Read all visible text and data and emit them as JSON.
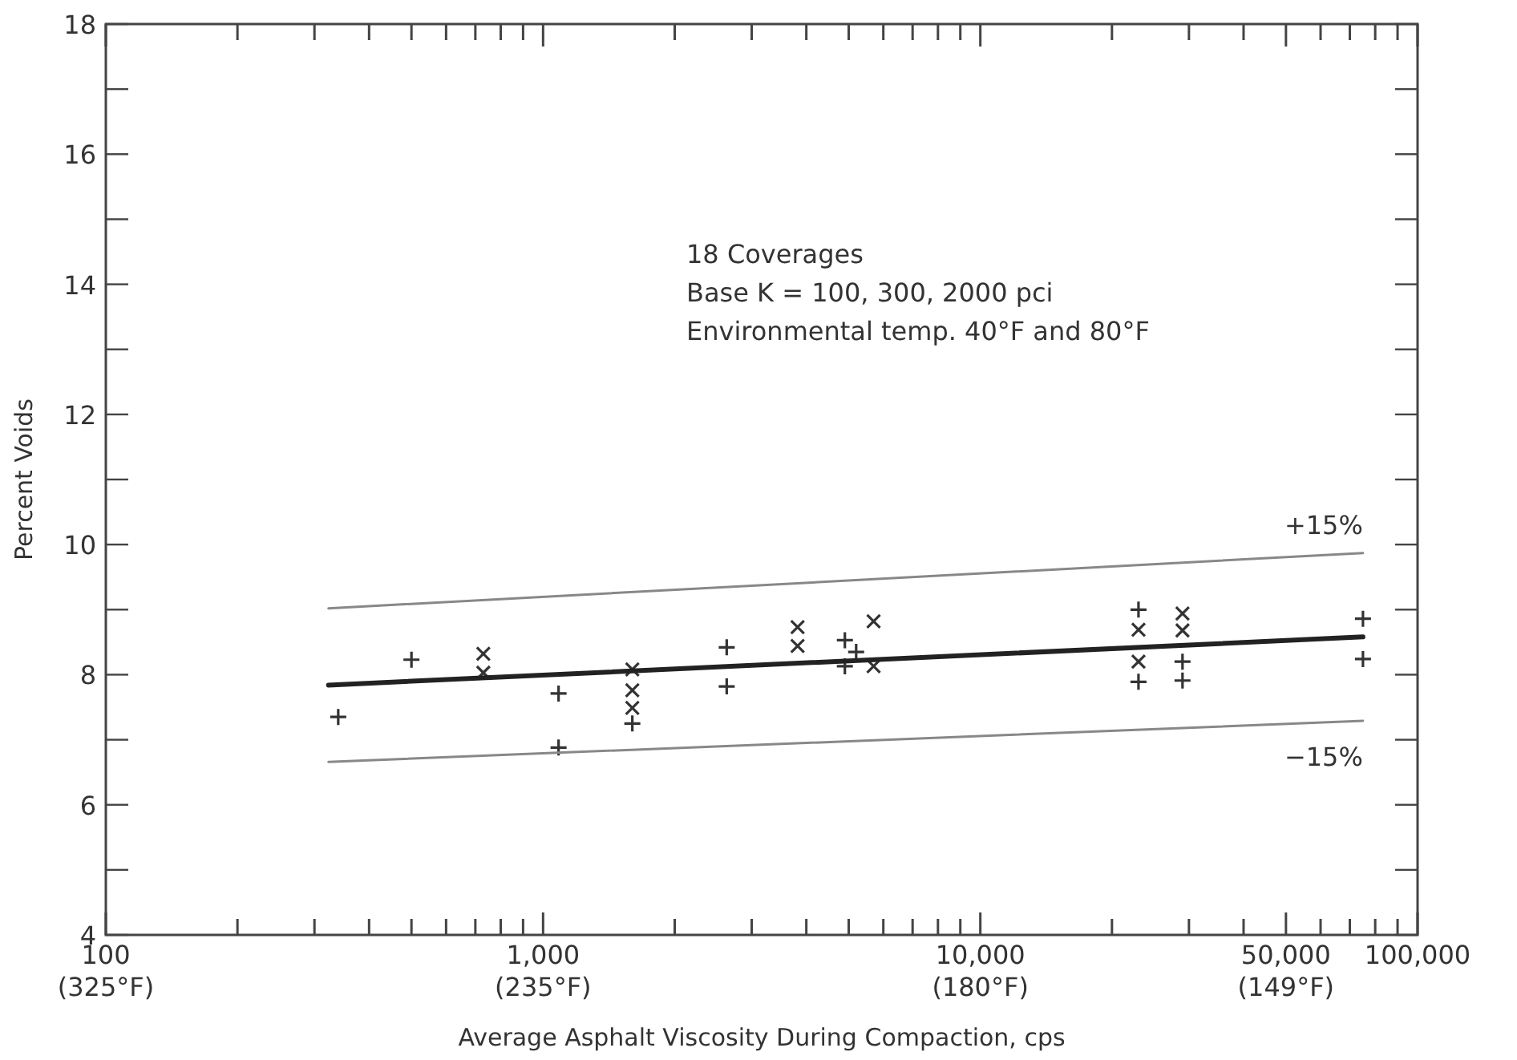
{
  "chart_data": {
    "type": "scatter",
    "xlabel": "Average Asphalt Viscosity During Compaction, cps",
    "ylabel": "Percent Voids",
    "log": "x",
    "grid": false,
    "legend": false,
    "annotations": [
      "18 Coverages",
      "Base K = 100, 300, 2000 pci",
      "Environmental temp. 40°F and 80°F",
      "(325°F)",
      "(235°F)",
      "(180°F)",
      "(149°F)"
    ],
    "xlim": [
      100,
      100000
    ],
    "ylim": [
      4,
      18
    ],
    "xticks": [
      100,
      {
        "value": 200,
        "label": null
      },
      {
        "value": 300,
        "label": null
      },
      {
        "value": 400,
        "label": null
      },
      {
        "value": 500,
        "label": null
      },
      {
        "value": 600,
        "label": null
      },
      {
        "value": 700,
        "label": null
      },
      {
        "value": 800,
        "label": null
      },
      {
        "value": 900,
        "label": null
      },
      {
        "value": 1000,
        "label": "1,000"
      },
      {
        "value": 2000,
        "label": null
      },
      {
        "value": 3000,
        "label": null
      },
      {
        "value": 4000,
        "label": null
      },
      {
        "value": 5000,
        "label": null
      },
      {
        "value": 6000,
        "label": null
      },
      {
        "value": 7000,
        "label": null
      },
      {
        "value": 8000,
        "label": null
      },
      {
        "value": 9000,
        "label": null
      },
      {
        "value": 10000,
        "label": "10,000"
      },
      {
        "value": 20000,
        "label": null
      },
      {
        "value": 30000,
        "label": null
      },
      {
        "value": 40000,
        "label": null
      },
      {
        "value": 50000,
        "label": "50,000"
      },
      {
        "value": 60000,
        "label": null
      },
      {
        "value": 70000,
        "label": null
      },
      {
        "value": 80000,
        "label": null
      },
      {
        "value": 90000,
        "label": null
      },
      {
        "value": 100000,
        "label": "100,000"
      }
    ],
    "yticks": [
      4,
      {
        "value": 5,
        "label": null
      },
      6,
      {
        "value": 7,
        "label": null
      },
      8,
      {
        "value": 9,
        "label": null
      },
      10,
      {
        "value": 11,
        "label": null
      },
      12,
      {
        "value": 13,
        "label": null
      },
      14,
      {
        "value": 15,
        "label": null
      },
      16,
      {
        "value": 17,
        "label": null
      },
      18
    ],
    "series": [
      {
        "marker": "cross",
        "color": "#333333",
        "x": [
          500,
          340,
          1085,
          1085,
          1600,
          2630,
          2630,
          4900,
          5200,
          4900,
          23000,
          23000,
          29000,
          29000,
          75000,
          75000
        ],
        "values": [
          8.23,
          7.35,
          7.71,
          6.88,
          7.25,
          8.42,
          7.82,
          8.53,
          8.35,
          8.13,
          9.0,
          7.89,
          8.2,
          7.91,
          8.86,
          8.24
        ]
      },
      {
        "marker": "x",
        "color": "#333333",
        "x": [
          730,
          730,
          1600,
          1600,
          1600,
          3820,
          3820,
          5700,
          5700,
          23000,
          23000,
          29000,
          29000
        ],
        "values": [
          8.32,
          8.03,
          8.08,
          7.76,
          7.49,
          8.73,
          8.44,
          8.13,
          8.82,
          8.69,
          8.2,
          8.94,
          8.68
        ]
      },
      {
        "type": "line",
        "color": "#222222",
        "line_style": "solid",
        "x": [
          323,
          75000
        ],
        "values": [
          7.84,
          8.58
        ]
      },
      {
        "type": "line",
        "name": "+15%",
        "color": "#888888",
        "line_style": "solid",
        "x": [
          323,
          75000
        ],
        "values": [
          9.02,
          9.87
        ]
      },
      {
        "type": "line",
        "name": "−15%",
        "color": "#888888",
        "line_style": "solid",
        "x": [
          323,
          75000
        ],
        "values": [
          6.66,
          7.29
        ]
      }
    ]
  }
}
